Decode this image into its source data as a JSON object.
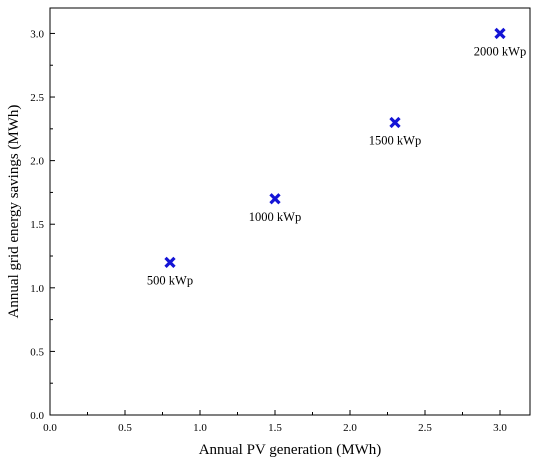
{
  "chart_data": {
    "type": "scatter",
    "title": "",
    "xlabel": "Annual PV generation (MWh)",
    "ylabel": "Annual grid energy savings (MWh)",
    "xlim": [
      0.0,
      3.2
    ],
    "ylim": [
      0.0,
      3.2
    ],
    "xticks": [
      "0.0",
      "0.5",
      "1.0",
      "1.5",
      "2.0",
      "2.5",
      "3.0"
    ],
    "yticks": [
      "0.0",
      "0.5",
      "1.0",
      "1.5",
      "2.0",
      "2.5",
      "3.0"
    ],
    "grid": false,
    "marker": "x",
    "marker_color": "#1414d6",
    "series": [
      {
        "points": [
          {
            "x": 0.8,
            "y": 1.2,
            "label": "500 kWp"
          },
          {
            "x": 1.5,
            "y": 1.7,
            "label": "1000 kWp"
          },
          {
            "x": 2.3,
            "y": 2.3,
            "label": "1500 kWp"
          },
          {
            "x": 3.0,
            "y": 3.0,
            "label": "2000 kWp"
          }
        ]
      }
    ]
  }
}
